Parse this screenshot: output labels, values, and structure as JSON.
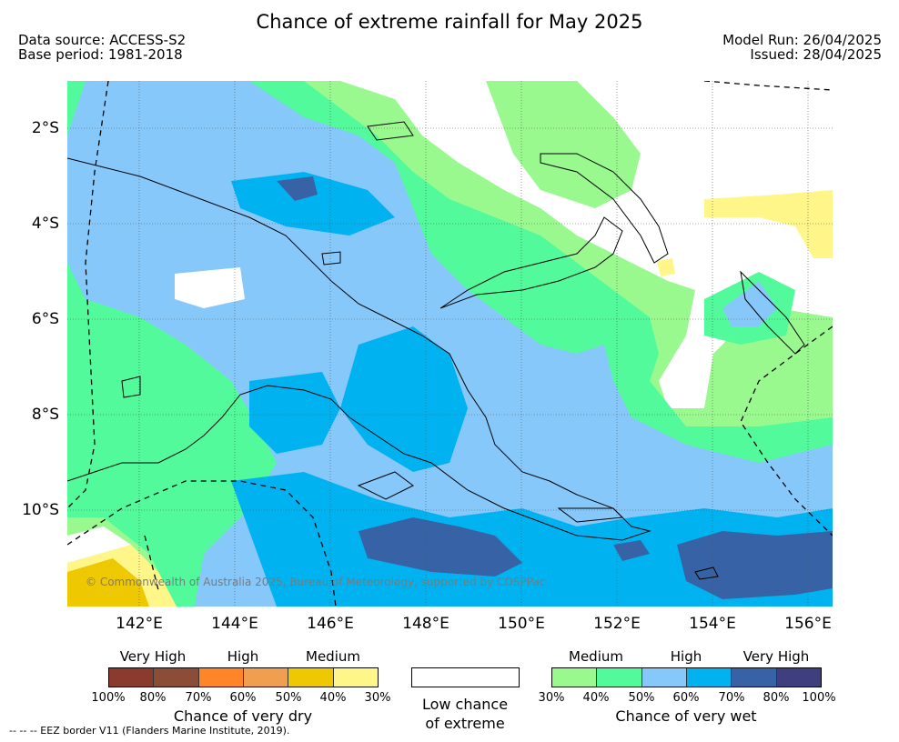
{
  "title": "Chance of extreme rainfall for May 2025",
  "meta_left": {
    "source": "Data source: ACCESS-S2",
    "base": "Base period: 1981-2018"
  },
  "meta_right": {
    "run": "Model Run: 26/04/2025",
    "issued": "Issued: 28/04/2025"
  },
  "y_ticks": [
    "2°S",
    "4°S",
    "6°S",
    "8°S",
    "10°S"
  ],
  "x_ticks": [
    "142°E",
    "144°E",
    "146°E",
    "148°E",
    "150°E",
    "152°E",
    "154°E",
    "156°E"
  ],
  "copyright": "© Commonwealth of Australia 2025, Bureau of Meteorology, supported by COSPPac",
  "dry_legend": {
    "levels": [
      "Very High",
      "High",
      "Medium"
    ],
    "percents": [
      "100%",
      "80%",
      "70%",
      "60%",
      "50%",
      "40%",
      "30%"
    ],
    "caption": "Chance of very dry",
    "colors": [
      "#8b3a2e",
      "#8b4c38",
      "#ff8528",
      "#ef9f4f",
      "#eec800",
      "#fff68a"
    ]
  },
  "low_legend": {
    "line1": "Low chance",
    "line2": "of extreme"
  },
  "wet_legend": {
    "levels": [
      "Medium",
      "High",
      "Very High"
    ],
    "percents": [
      "30%",
      "40%",
      "50%",
      "60%",
      "70%",
      "80%",
      "100%"
    ],
    "caption": "Chance of very wet",
    "colors": [
      "#99f98f",
      "#52fa9c",
      "#87c8fb",
      "#00b3f0",
      "#3763a6",
      "#3f3f80"
    ]
  },
  "eez_note": "--  --  -- EEZ border V11 (Flanders Marine Institute, 2019).",
  "map_colors": {
    "wet_medium_low": "#99f98f",
    "wet_medium": "#52fa9c",
    "wet_high_low": "#87c8fb",
    "wet_high": "#00b3f0",
    "wet_vhigh": "#3763a6",
    "dry_medium": "#eec800",
    "dry_low": "#fff68a"
  }
}
